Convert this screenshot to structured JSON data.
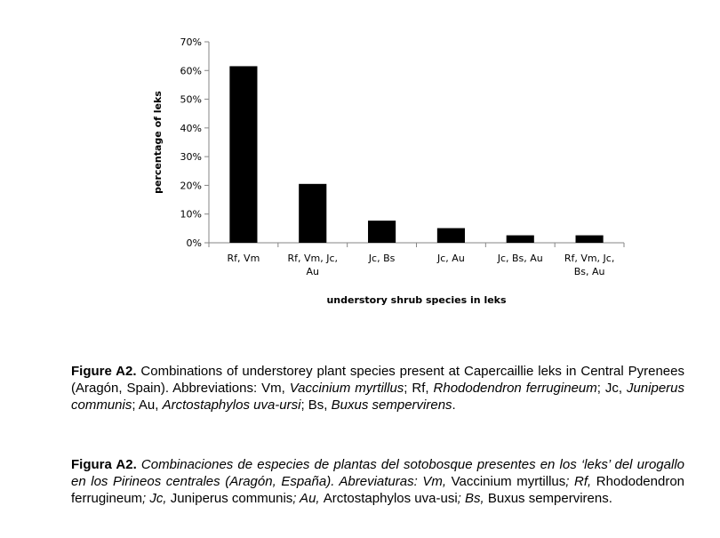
{
  "chart_data": {
    "type": "bar",
    "title": "",
    "xlabel": "understory shrub species in leks",
    "ylabel": "percentage of leks",
    "ylim": [
      0,
      70
    ],
    "y_ticks": [
      "0%",
      "10%",
      "20%",
      "30%",
      "40%",
      "50%",
      "60%",
      "70%"
    ],
    "categories": [
      [
        "Rf, Vm"
      ],
      [
        "Rf, Vm, Jc,",
        "Au"
      ],
      [
        "Jc, Bs"
      ],
      [
        "Jc, Au"
      ],
      [
        "Jc, Bs, Au"
      ],
      [
        "Rf, Vm, Jc,",
        "Bs, Au"
      ]
    ],
    "values": [
      61.5,
      20.5,
      7.7,
      5.1,
      2.6,
      2.6
    ],
    "bar_color": "#000000",
    "grid": false
  },
  "caption_en": {
    "label": "Figure A2.",
    "parts": [
      {
        "t": " Combinations of understorey plant species present at Capercaillie leks in Central Pyrenees (Aragón, Spain). Abbreviations: Vm, ",
        "i": false
      },
      {
        "t": "Vaccinium myrtillus",
        "i": true
      },
      {
        "t": "; Rf, ",
        "i": false
      },
      {
        "t": "Rhododendron ferrugineum",
        "i": true
      },
      {
        "t": "; Jc, ",
        "i": false
      },
      {
        "t": "Juniperus communis",
        "i": true
      },
      {
        "t": "; Au, ",
        "i": false
      },
      {
        "t": "Arctostaphylos uva-ursi",
        "i": true
      },
      {
        "t": "; Bs, ",
        "i": false
      },
      {
        "t": "Buxus sempervirens",
        "i": true
      },
      {
        "t": ".",
        "i": false
      }
    ]
  },
  "caption_es": {
    "label": "Figura A2.",
    "parts": [
      {
        "t": " Combinaciones de especies de plantas del sotobosque presentes en los ‘leks’ del urogallo en los Pirineos centrales (Aragón, España). Abreviaturas: Vm, ",
        "i": true
      },
      {
        "t": "Vaccinium myrtillus",
        "i": false
      },
      {
        "t": "; Rf, ",
        "i": true
      },
      {
        "t": "Rhododendron ferrugineum",
        "i": false
      },
      {
        "t": "; Jc, ",
        "i": true
      },
      {
        "t": "Juniperus communis",
        "i": false
      },
      {
        "t": "; Au, ",
        "i": true
      },
      {
        "t": "Arctostaphylos uva-usi",
        "i": false
      },
      {
        "t": "; Bs, ",
        "i": true
      },
      {
        "t": "Buxus sempervirens",
        "i": false
      },
      {
        "t": ".",
        "i": false
      }
    ]
  }
}
